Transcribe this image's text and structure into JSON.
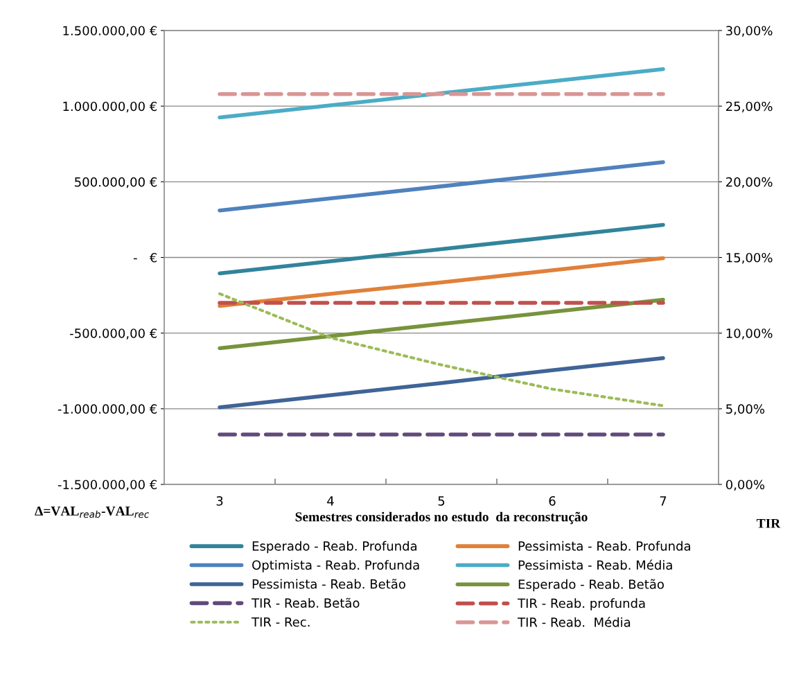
{
  "chart_data": {
    "type": "line",
    "xlabel": "Semestres considerados no estudo  da reconstrução",
    "ylabel": "Δ=VAL$_{reab}$-VAL$_{rec}$",
    "y2label": "TIR",
    "categories": [
      "3",
      "4",
      "5",
      "6",
      "7"
    ],
    "series": [
      {
        "name": "Esperado - Reab. Profunda",
        "color": "#31849b",
        "line_style": "solid",
        "values": [
          -105000,
          -25000,
          55000,
          135000,
          215000
        ]
      },
      {
        "name": "Pessimista - Reab. Profunda",
        "color": "#e0803a",
        "line_style": "solid",
        "values": [
          -320000,
          -240000,
          -165000,
          -85000,
          -5000
        ]
      },
      {
        "name": "Optimista - Reab. Profunda",
        "color": "#4f81bd",
        "line_style": "solid",
        "values": [
          310000,
          390000,
          470000,
          550000,
          630000
        ]
      },
      {
        "name": "Pessimista - Reab. Média",
        "color": "#4bacc6",
        "line_style": "solid",
        "values": [
          925000,
          1005000,
          1085000,
          1165000,
          1245000
        ]
      },
      {
        "name": "Pessimista - Reab. Betão",
        "color": "#3f6497",
        "line_style": "solid",
        "values": [
          -990000,
          -910000,
          -830000,
          -745000,
          -665000
        ]
      },
      {
        "name": "Esperado - Reab. Betão",
        "color": "#77933c",
        "line_style": "solid",
        "values": [
          -600000,
          -520000,
          -440000,
          -360000,
          -280000
        ]
      },
      {
        "name": "TIR - Reab. Betão",
        "color": "#604a7b",
        "line_style": "dashed",
        "axis": "y2",
        "values": [
          3.3,
          3.3,
          3.3,
          3.3,
          3.3
        ]
      },
      {
        "name": "TIR - Reab. profunda",
        "color": "#c0504d",
        "line_style": "dashed",
        "axis": "y2",
        "values": [
          12.0,
          12.0,
          12.0,
          12.0,
          12.0
        ]
      },
      {
        "name": "TIR - Rec.",
        "color": "#9bbb59",
        "line_style": "dotted",
        "axis": "y2",
        "values": [
          12.6,
          9.7,
          7.9,
          6.3,
          5.2
        ]
      },
      {
        "name": "TIR - Reab.  Média",
        "color": "#d99694",
        "line_style": "dashed",
        "axis": "y2",
        "values": [
          25.8,
          25.8,
          25.8,
          25.8,
          25.8
        ]
      }
    ],
    "ylim": [
      -1500000,
      1500000
    ],
    "yticks": [
      {
        "value": -1500000,
        "label": "-1.500.000,00 €"
      },
      {
        "value": -1000000,
        "label": "-1.000.000,00 €"
      },
      {
        "value": -500000,
        "label": "-500.000,00 €"
      },
      {
        "value": 0,
        "label": "-   €"
      },
      {
        "value": 500000,
        "label": "500.000,00 €"
      },
      {
        "value": 1000000,
        "label": "1.000.000,00 €"
      },
      {
        "value": 1500000,
        "label": "1.500.000,00 €"
      }
    ],
    "y2lim": [
      0,
      30
    ],
    "y2ticks": [
      {
        "value": 0,
        "label": "0,00%"
      },
      {
        "value": 5,
        "label": "5,00%"
      },
      {
        "value": 10,
        "label": "10,00%"
      },
      {
        "value": 15,
        "label": "15,00%"
      },
      {
        "value": 20,
        "label": "20,00%"
      },
      {
        "value": 25,
        "label": "25,00%"
      },
      {
        "value": 30,
        "label": "30,00%"
      }
    ],
    "grid": "y",
    "legend": "bottom",
    "marker": "none"
  }
}
